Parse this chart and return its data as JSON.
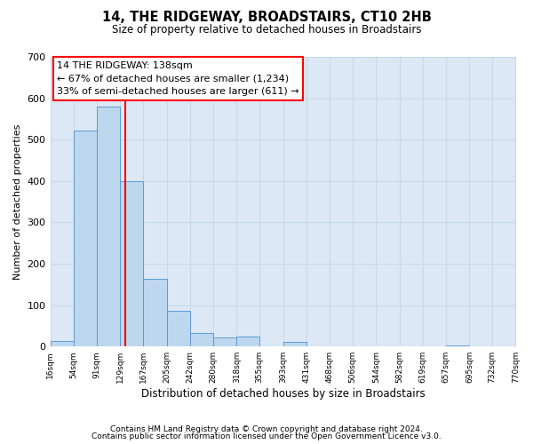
{
  "title": "14, THE RIDGEWAY, BROADSTAIRS, CT10 2HB",
  "subtitle": "Size of property relative to detached houses in Broadstairs",
  "xlabel": "Distribution of detached houses by size in Broadstairs",
  "ylabel": "Number of detached properties",
  "footnote1": "Contains HM Land Registry data © Crown copyright and database right 2024.",
  "footnote2": "Contains public sector information licensed under the Open Government Licence v3.0.",
  "bar_edges": [
    16,
    54,
    91,
    129,
    167,
    205,
    242,
    280,
    318,
    355,
    393,
    431,
    468,
    506,
    544,
    582,
    619,
    657,
    695,
    732,
    770
  ],
  "bar_heights": [
    13,
    521,
    580,
    400,
    163,
    86,
    33,
    22,
    25,
    0,
    12,
    0,
    0,
    0,
    0,
    0,
    0,
    3,
    0,
    0
  ],
  "bar_color": "#bdd7ee",
  "bar_edgecolor": "#5b9bd5",
  "property_line_x": 138,
  "property_line_color": "#ff0000",
  "annotation_line1": "14 THE RIDGEWAY: 138sqm",
  "annotation_line2": "← 67% of detached houses are smaller (1,234)",
  "annotation_line3": "33% of semi-detached houses are larger (611) →",
  "ylim": [
    0,
    700
  ],
  "xlim": [
    16,
    770
  ],
  "tick_labels": [
    "16sqm",
    "54sqm",
    "91sqm",
    "129sqm",
    "167sqm",
    "205sqm",
    "242sqm",
    "280sqm",
    "318sqm",
    "355sqm",
    "393sqm",
    "431sqm",
    "468sqm",
    "506sqm",
    "544sqm",
    "582sqm",
    "619sqm",
    "657sqm",
    "695sqm",
    "732sqm",
    "770sqm"
  ],
  "grid_color": "#c8d8e8",
  "background_color": "#dce8f5"
}
